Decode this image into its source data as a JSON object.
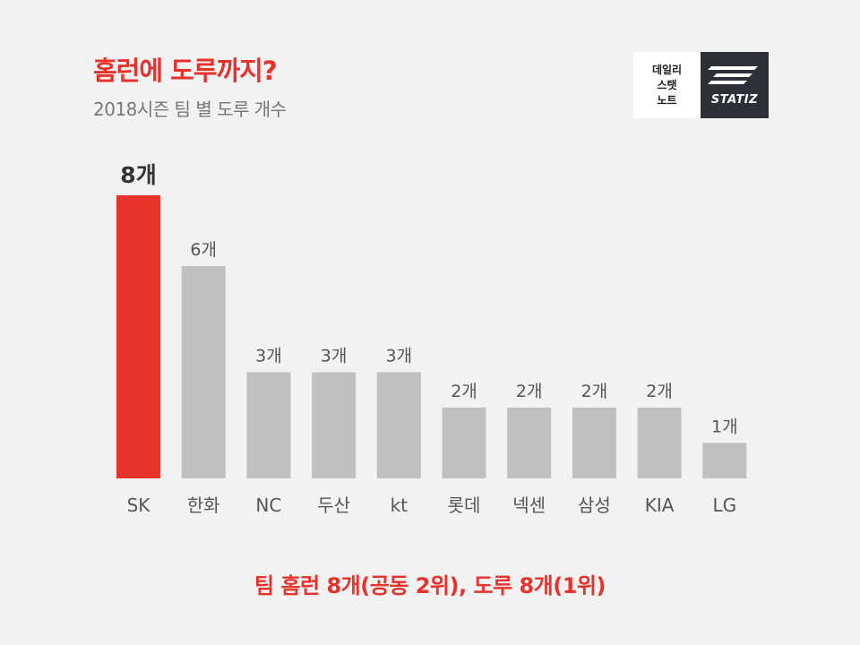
{
  "header": {
    "title": "홈런에 도루까지?",
    "subtitle": "2018시즌 팀 별 도루 개수"
  },
  "logo": {
    "left_lines": [
      "데일리",
      "스탯",
      "노트"
    ],
    "right_text": "STATIZ"
  },
  "chart_data": {
    "type": "bar",
    "categories": [
      "SK",
      "한화",
      "NC",
      "두산",
      "kt",
      "롯데",
      "넥센",
      "삼성",
      "KIA",
      "LG"
    ],
    "values": [
      8,
      6,
      3,
      3,
      3,
      2,
      2,
      2,
      2,
      1
    ],
    "value_labels": [
      "8개",
      "6개",
      "3개",
      "3개",
      "3개",
      "2개",
      "2개",
      "2개",
      "2개",
      "1개"
    ],
    "highlight_index": 0,
    "colors": {
      "highlight": "#e8322b",
      "default": "#c0c0c0"
    },
    "ylim": [
      0,
      8
    ],
    "grid": false
  },
  "footer": {
    "note": "팀 홈런 8개(공동 2위), 도루 8개(1위)"
  }
}
